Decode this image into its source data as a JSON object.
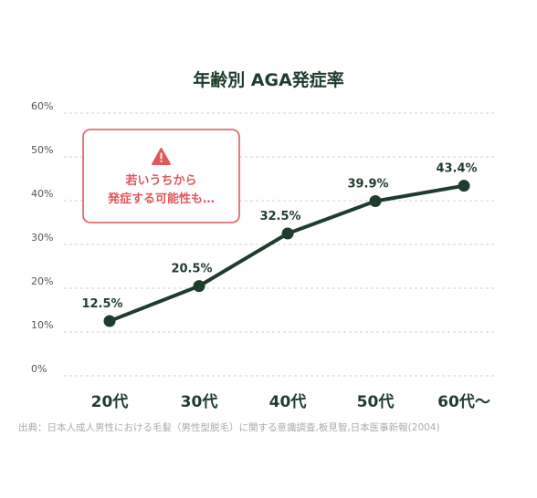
{
  "chart_data": {
    "type": "line",
    "title": "年齢別 AGA発症率",
    "categories": [
      "20代",
      "30代",
      "40代",
      "50代",
      "60代〜"
    ],
    "series": [
      {
        "values": [
          12.5,
          20.5,
          32.5,
          39.9,
          43.4
        ],
        "labels": [
          "12.5%",
          "20.5%",
          "32.5%",
          "39.9%",
          "43.4%"
        ]
      }
    ],
    "yticks": [
      "0%",
      "10%",
      "20%",
      "30%",
      "40%",
      "50%",
      "60%"
    ],
    "ylim": [
      0,
      60
    ],
    "grid": true,
    "grid_style": "dashed",
    "legend": "none",
    "warning_box": {
      "line1": "若いうちから",
      "line2": "発症する可能性も…",
      "icon": "warning-triangle-icon"
    },
    "source": "出典：日本人成人男性における毛髪（男性型脱毛）に関する意識調査,板見智,日本医事新報(2004)",
    "colors": {
      "line": "#1e3d2c",
      "title": "#1e3d2c",
      "warning": "#e0575b",
      "grid": "#cfcfcf",
      "tick": "#555555",
      "source": "#aaaaaa"
    }
  }
}
